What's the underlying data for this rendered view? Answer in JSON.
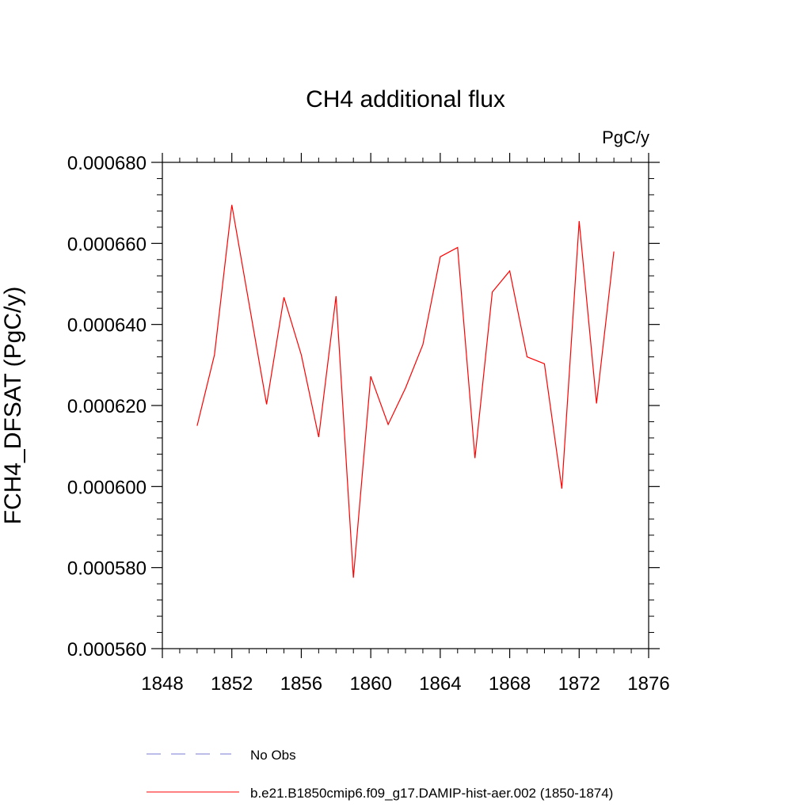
{
  "chart_data": {
    "type": "line",
    "title": "CH4 additional flux",
    "units_label": "PgC/y",
    "xlabel": "",
    "ylabel": "FCH4_DFSAT  (PgC/y)",
    "xlim": [
      1848,
      1876
    ],
    "ylim": [
      0.00056,
      0.00068
    ],
    "x_ticks": [
      1848,
      1852,
      1856,
      1860,
      1864,
      1868,
      1872,
      1876
    ],
    "y_ticks": [
      0.00056,
      0.00058,
      0.0006,
      0.00062,
      0.00064,
      0.00066,
      0.00068
    ],
    "x_tick_labels": [
      "1848",
      "1852",
      "1856",
      "1860",
      "1864",
      "1868",
      "1872",
      "1876"
    ],
    "y_tick_labels": [
      "0.000560",
      "0.000580",
      "0.000600",
      "0.000620",
      "0.000640",
      "0.000660",
      "0.000680"
    ],
    "grid": false,
    "series": [
      {
        "name": "b.e21.B1850cmip6.f09_g17.DAMIP-hist-aer.002 (1850-1874)",
        "color": "#ff0000",
        "style": "solid",
        "x": [
          1850,
          1851,
          1852,
          1853,
          1854,
          1855,
          1856,
          1857,
          1858,
          1859,
          1860,
          1861,
          1862,
          1863,
          1864,
          1865,
          1866,
          1867,
          1868,
          1869,
          1870,
          1871,
          1872,
          1873,
          1874
        ],
        "y": [
          0.000615,
          0.0006325,
          0.0006695,
          0.000645,
          0.0006203,
          0.0006467,
          0.0006325,
          0.0006122,
          0.000647,
          0.0005775,
          0.0006272,
          0.0006153,
          0.0006243,
          0.000635,
          0.0006567,
          0.000659,
          0.000607,
          0.000648,
          0.0006532,
          0.000632,
          0.0006303,
          0.0005995,
          0.0006655,
          0.0006205,
          0.000658
        ]
      }
    ],
    "legend": {
      "placement": "bottom",
      "entries": [
        {
          "label": "No Obs",
          "color": "#7b7bd6",
          "style": "dashed"
        },
        {
          "label": "b.e21.B1850cmip6.f09_g17.DAMIP-hist-aer.002 (1850-1874)",
          "color": "#ff0000",
          "style": "solid"
        }
      ]
    }
  }
}
